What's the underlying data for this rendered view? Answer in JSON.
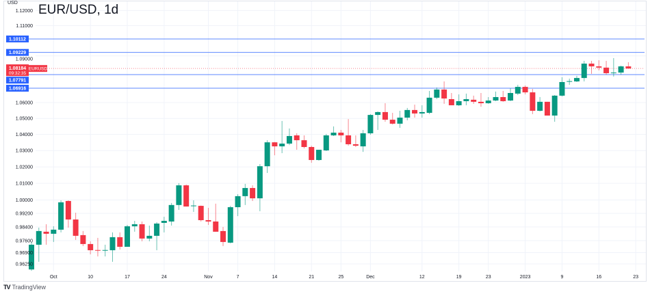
{
  "header": {
    "title": "EUR/USD, 1d",
    "unit": "USD"
  },
  "branding": {
    "name": "TradingView",
    "mark": "TV"
  },
  "colors": {
    "up": "#089981",
    "down": "#f23645",
    "level_line": "#2962ff",
    "current": "#f23645",
    "grid": "#f0f3fa"
  },
  "current_price": {
    "value": 1.08184,
    "label": "1.08184",
    "countdown": "09:32:35",
    "symbol": "EURUSD"
  },
  "level_lines": [
    {
      "value": 1.10112,
      "label": "1.10112"
    },
    {
      "value": 1.09229,
      "label": "1.09229"
    },
    {
      "value": 1.07791,
      "label": "1.07791"
    },
    {
      "value": 1.06916,
      "label": "1.06916"
    }
  ],
  "chart_data": {
    "type": "candlestick",
    "title": "EUR/USD, 1d",
    "ylabel": "USD",
    "y_scale": "log",
    "ylim": [
      0.957,
      1.125
    ],
    "grid": true,
    "y_ticks": [
      {
        "value": 1.12,
        "label": "1.12000"
      },
      {
        "value": 1.11,
        "label": "1.11000"
      },
      {
        "value": 1.09,
        "label": "1.09000"
      },
      {
        "value": 1.06,
        "label": "1.06000"
      },
      {
        "value": 1.05,
        "label": "1.05000"
      },
      {
        "value": 1.04,
        "label": "1.04000"
      },
      {
        "value": 1.03,
        "label": "1.03000"
      },
      {
        "value": 1.02,
        "label": "1.02000"
      },
      {
        "value": 1.01,
        "label": "1.01000"
      },
      {
        "value": 1.0,
        "label": "1.00000"
      },
      {
        "value": 0.992,
        "label": "0.99200"
      },
      {
        "value": 0.984,
        "label": "0.98400"
      },
      {
        "value": 0.976,
        "label": "0.97600"
      },
      {
        "value": 0.969,
        "label": "0.96900"
      },
      {
        "value": 0.9625,
        "label": "0.96250"
      }
    ],
    "x_ticks": [
      {
        "index": 3,
        "label": "Oct"
      },
      {
        "index": 8,
        "label": "10"
      },
      {
        "index": 13,
        "label": "17"
      },
      {
        "index": 18,
        "label": "24"
      },
      {
        "index": 24,
        "label": "Nov"
      },
      {
        "index": 28,
        "label": "7"
      },
      {
        "index": 33,
        "label": "14"
      },
      {
        "index": 38,
        "label": "21"
      },
      {
        "index": 42,
        "label": "25"
      },
      {
        "index": 46,
        "label": "Dec"
      },
      {
        "index": 53,
        "label": "12"
      },
      {
        "index": 58,
        "label": "19"
      },
      {
        "index": 62,
        "label": "23"
      },
      {
        "index": 67,
        "label": "2023"
      },
      {
        "index": 72,
        "label": "9"
      },
      {
        "index": 77,
        "label": "16"
      },
      {
        "index": 82,
        "label": "23"
      }
    ],
    "ohlc": [
      [
        0.9593,
        0.9752,
        0.9585,
        0.9736
      ],
      [
        0.9736,
        0.9836,
        0.9637,
        0.9816
      ],
      [
        0.9812,
        0.9856,
        0.9736,
        0.98
      ],
      [
        0.98,
        0.9844,
        0.9752,
        0.9824
      ],
      [
        0.9824,
        0.9998,
        0.9808,
        0.9986
      ],
      [
        0.9994,
        0.9998,
        0.9836,
        0.9884
      ],
      [
        0.9884,
        0.9924,
        0.9764,
        0.9788
      ],
      [
        0.9792,
        0.9816,
        0.9728,
        0.974
      ],
      [
        0.974,
        0.9756,
        0.968,
        0.9704
      ],
      [
        0.9705,
        0.9776,
        0.9668,
        0.9702
      ],
      [
        0.9702,
        0.9736,
        0.9668,
        0.9705
      ],
      [
        0.9704,
        0.9808,
        0.9637,
        0.978
      ],
      [
        0.978,
        0.9808,
        0.9708,
        0.9724
      ],
      [
        0.9724,
        0.9852,
        0.9724,
        0.9844
      ],
      [
        0.9844,
        0.9876,
        0.9812,
        0.9856
      ],
      [
        0.9856,
        0.9872,
        0.9756,
        0.9772
      ],
      [
        0.9772,
        0.9848,
        0.9756,
        0.9788
      ],
      [
        0.9788,
        0.9868,
        0.9704,
        0.986
      ],
      [
        0.9864,
        0.99,
        0.9808,
        0.9876
      ],
      [
        0.9872,
        0.9982,
        0.9848,
        0.997
      ],
      [
        0.997,
        1.0101,
        0.9941,
        1.0088
      ],
      [
        1.0088,
        1.0093,
        0.9961,
        0.9961
      ],
      [
        0.9963,
        0.9998,
        0.9929,
        0.9967
      ],
      [
        0.9965,
        0.9967,
        0.9872,
        0.988
      ],
      [
        0.988,
        0.9953,
        0.9852,
        0.9872
      ],
      [
        0.9872,
        0.9978,
        0.9812,
        0.9812
      ],
      [
        0.9816,
        0.984,
        0.9728,
        0.9752
      ],
      [
        0.9748,
        0.9965,
        0.9744,
        0.9957
      ],
      [
        0.9957,
        1.0035,
        0.9904,
        1.0023
      ],
      [
        1.0023,
        1.0097,
        0.997,
        1.0072
      ],
      [
        1.0072,
        1.0088,
        0.9994,
        1.001
      ],
      [
        1.001,
        1.0217,
        0.9933,
        1.0204
      ],
      [
        1.0204,
        1.0364,
        1.0163,
        1.0351
      ],
      [
        1.0351,
        1.0353,
        1.0271,
        1.0326
      ],
      [
        1.0326,
        1.0484,
        1.0284,
        1.0343
      ],
      [
        1.0343,
        1.0437,
        1.0334,
        1.039
      ],
      [
        1.0394,
        1.0407,
        1.0305,
        1.0364
      ],
      [
        1.0364,
        1.0394,
        1.0313,
        1.0322
      ],
      [
        1.0322,
        1.033,
        1.0225,
        1.0242
      ],
      [
        1.0242,
        1.0305,
        1.0238,
        1.0305
      ],
      [
        1.0301,
        1.0403,
        1.0297,
        1.0394
      ],
      [
        1.0394,
        1.045,
        1.039,
        1.0411
      ],
      [
        1.0411,
        1.0428,
        1.0351,
        1.0394
      ],
      [
        1.0394,
        1.0496,
        1.033,
        1.0339
      ],
      [
        1.0339,
        1.0394,
        1.0322,
        1.033
      ],
      [
        1.0326,
        1.0428,
        1.0292,
        1.0407
      ],
      [
        1.0407,
        1.0527,
        1.0398,
        1.0522
      ],
      [
        1.0522,
        1.0544,
        1.0428,
        1.054
      ],
      [
        1.054,
        1.0596,
        1.0479,
        1.0492
      ],
      [
        1.0492,
        1.0535,
        1.0462,
        1.0467
      ],
      [
        1.0467,
        1.0548,
        1.0441,
        1.0505
      ],
      [
        1.0505,
        1.0566,
        1.0488,
        1.0553
      ],
      [
        1.0553,
        1.0587,
        1.0505,
        1.0531
      ],
      [
        1.0531,
        1.0583,
        1.0505,
        1.054
      ],
      [
        1.0535,
        1.0674,
        1.0527,
        1.0631
      ],
      [
        1.0631,
        1.0696,
        1.0622,
        1.0683
      ],
      [
        1.0683,
        1.0735,
        1.0592,
        1.0626
      ],
      [
        1.0622,
        1.0661,
        1.0583,
        1.0583
      ],
      [
        1.0583,
        1.0652,
        1.0579,
        1.0609
      ],
      [
        1.0609,
        1.0657,
        1.0583,
        1.0622
      ],
      [
        1.0618,
        1.0644,
        1.0592,
        1.0605
      ],
      [
        1.0605,
        1.0661,
        1.0574,
        1.0596
      ],
      [
        1.0596,
        1.0635,
        1.0592,
        1.0613
      ],
      [
        1.0613,
        1.067,
        1.0609,
        1.0635
      ],
      [
        1.0635,
        1.0674,
        1.0605,
        1.0609
      ],
      [
        1.0613,
        1.0691,
        1.0609,
        1.0661
      ],
      [
        1.0657,
        1.0713,
        1.0648,
        1.07
      ],
      [
        1.07,
        1.0709,
        1.0652,
        1.0665
      ],
      [
        1.0665,
        1.0687,
        1.0527,
        1.0548
      ],
      [
        1.0548,
        1.0635,
        1.0544,
        1.0605
      ],
      [
        1.0605,
        1.0605,
        1.0518,
        1.0518
      ],
      [
        1.0518,
        1.0648,
        1.0479,
        1.0644
      ],
      [
        1.0644,
        1.0762,
        1.0639,
        1.0731
      ],
      [
        1.0733,
        1.0753,
        1.0713,
        1.0737
      ],
      [
        1.0735,
        1.0771,
        1.0731,
        1.0757
      ],
      [
        1.0757,
        1.0868,
        1.0735,
        1.085
      ],
      [
        1.085,
        1.0868,
        1.0784,
        1.0832
      ],
      [
        1.0832,
        1.0872,
        1.0806,
        1.0824
      ],
      [
        1.0824,
        1.0868,
        1.0779,
        1.0788
      ],
      [
        1.0788,
        1.0886,
        1.0766,
        1.0792
      ],
      [
        1.0792,
        1.0837,
        1.0779,
        1.0832
      ],
      [
        1.0832,
        1.0859,
        1.0819,
        1.0818
      ]
    ]
  }
}
